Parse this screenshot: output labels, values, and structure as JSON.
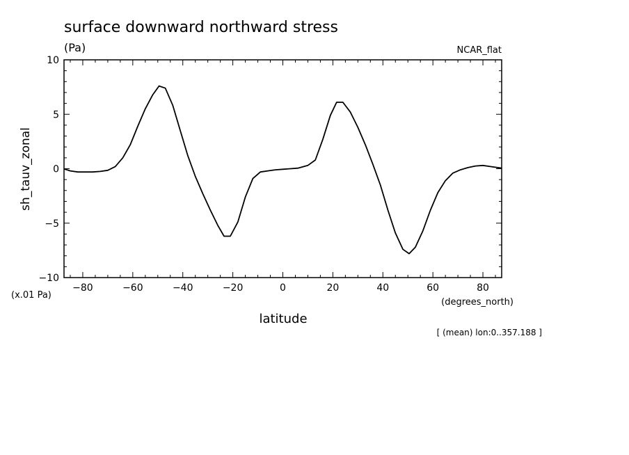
{
  "chart_data": {
    "type": "line",
    "title": "surface downward northward stress",
    "units_label": "(Pa)",
    "dataset_label": "NCAR_flat",
    "ylabel": "sh_tauv_zonal",
    "y_multiplier_label": "(x.01 Pa)",
    "xlabel": "latitude",
    "x_units_label": "(degrees_north)",
    "footnote": "[ (mean) lon:0..357.188 ]",
    "xlim": [
      -87.5,
      87.5
    ],
    "ylim": [
      -10,
      10
    ],
    "x_ticks": [
      -80,
      -60,
      -40,
      -20,
      0,
      20,
      40,
      60,
      80
    ],
    "x_tick_labels": [
      "−80",
      "−60",
      "−40",
      "−20",
      "0",
      "20",
      "40",
      "60",
      "80"
    ],
    "y_ticks": [
      -10,
      -5,
      0,
      5,
      10
    ],
    "y_tick_labels": [
      "−10",
      "−5",
      "0",
      "5",
      "10"
    ],
    "grid": false,
    "series": [
      {
        "color": "#000000",
        "x": [
          -87.5,
          -85,
          -82,
          -79,
          -76,
          -73,
          -70,
          -67,
          -64,
          -61,
          -58,
          -55,
          -52,
          -49.5,
          -47,
          -44,
          -41,
          -38,
          -35,
          -32,
          -29,
          -26,
          -23.5,
          -21,
          -18,
          -15,
          -12,
          -9,
          -6,
          -3,
          0,
          3,
          6,
          10,
          13,
          16,
          19,
          21.5,
          24,
          27,
          30,
          33,
          36,
          39,
          42,
          45,
          48,
          50.5,
          53,
          56,
          59,
          62,
          65,
          68,
          71,
          74,
          77,
          80,
          83,
          87.5
        ],
        "y": [
          -0.02,
          -0.2,
          -0.3,
          -0.3,
          -0.3,
          -0.25,
          -0.15,
          0.2,
          1.0,
          2.2,
          3.9,
          5.5,
          6.8,
          7.6,
          7.4,
          5.8,
          3.5,
          1.2,
          -0.7,
          -2.3,
          -3.8,
          -5.2,
          -6.2,
          -6.2,
          -4.9,
          -2.6,
          -0.9,
          -0.3,
          -0.2,
          -0.1,
          -0.05,
          0.0,
          0.05,
          0.3,
          0.8,
          2.7,
          4.9,
          6.1,
          6.1,
          5.2,
          3.8,
          2.2,
          0.4,
          -1.5,
          -3.8,
          -5.9,
          -7.4,
          -7.8,
          -7.2,
          -5.7,
          -3.8,
          -2.2,
          -1.1,
          -0.4,
          -0.1,
          0.1,
          0.25,
          0.3,
          0.2,
          0.05
        ]
      }
    ]
  }
}
